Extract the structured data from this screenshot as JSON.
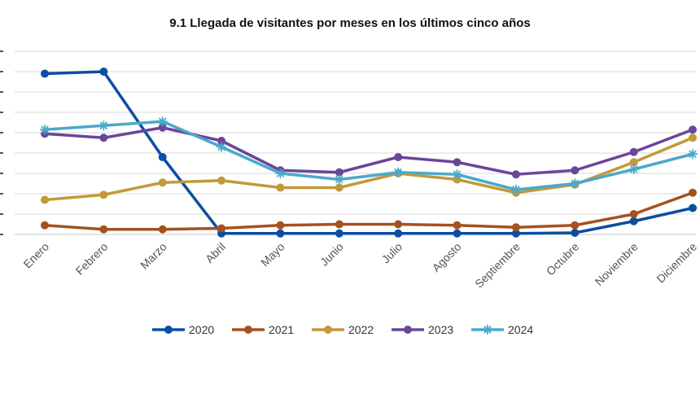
{
  "chart_data": {
    "type": "line",
    "title": "9.1 Llegada de visitantes por meses en los últimos cinco años",
    "xlabel": "",
    "ylabel": "",
    "categories": [
      "Enero",
      "Febrero",
      "Marzo",
      "Abril",
      "Mayo",
      "Junio",
      "Julio",
      "Agosto",
      "Septiembre",
      "Octubre",
      "Noviembre",
      "Diciembre"
    ],
    "ylim": [
      0,
      9
    ],
    "grid": true,
    "legend_position": "bottom",
    "series": [
      {
        "name": "2020",
        "color": "#0b4ea2",
        "marker": "circle",
        "values": [
          7.9,
          8.0,
          3.8,
          0.05,
          0.05,
          0.05,
          0.05,
          0.05,
          0.05,
          0.08,
          0.65,
          1.3
        ]
      },
      {
        "name": "2021",
        "color": "#a4521f",
        "marker": "circle",
        "values": [
          0.45,
          0.25,
          0.25,
          0.3,
          0.45,
          0.5,
          0.5,
          0.45,
          0.35,
          0.45,
          1.0,
          2.05
        ]
      },
      {
        "name": "2022",
        "color": "#c3993a",
        "marker": "circle",
        "values": [
          1.7,
          1.95,
          2.55,
          2.65,
          2.3,
          2.3,
          3.0,
          2.7,
          2.05,
          2.45,
          3.55,
          4.75
        ]
      },
      {
        "name": "2023",
        "color": "#6a4699",
        "marker": "circle",
        "values": [
          4.95,
          4.75,
          5.25,
          4.6,
          3.15,
          3.05,
          3.8,
          3.55,
          2.95,
          3.15,
          4.05,
          5.15
        ]
      },
      {
        "name": "2024",
        "color": "#4aa9c8",
        "marker": "asterisk",
        "values": [
          5.15,
          5.35,
          5.55,
          4.3,
          3.0,
          2.7,
          3.05,
          2.95,
          2.2,
          2.5,
          3.2,
          3.95
        ]
      }
    ]
  }
}
